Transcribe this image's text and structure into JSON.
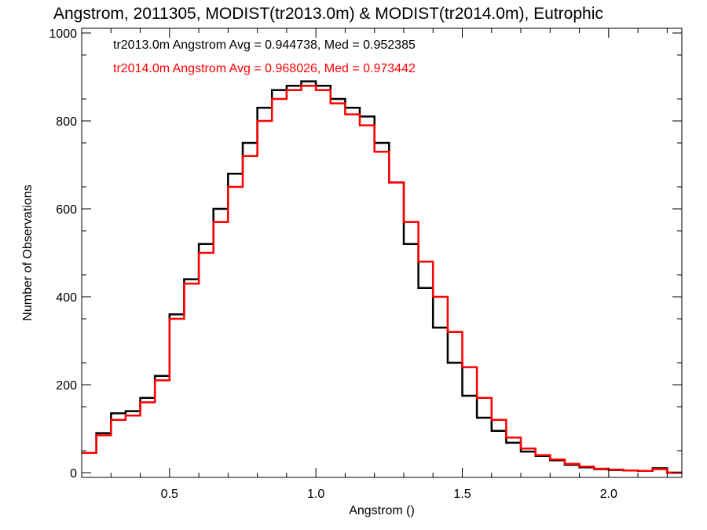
{
  "chart_data": {
    "type": "line",
    "title": "Angstrom, 2011305, MODIST(tr2013.0m) & MODIST(tr2014.0m), Eutrophic",
    "xlabel": "Angstrom ()",
    "ylabel": "Number of Observations",
    "xlim": [
      0.2,
      2.25
    ],
    "ylim": [
      0,
      1000
    ],
    "xticks": [
      0.5,
      1.0,
      1.5,
      2.0
    ],
    "xtick_labels": [
      "0.5",
      "1.0",
      "1.5",
      "2.0"
    ],
    "yticks": [
      0,
      200,
      400,
      600,
      800,
      1000
    ],
    "ytick_labels": [
      "0",
      "200",
      "400",
      "600",
      "800",
      "1000"
    ],
    "grid": false,
    "legend_position": "top-left",
    "annotations": [
      "tr2013.0m Angstrom Avg = 0.944738, Med = 0.952385",
      "tr2014.0m Angstrom Avg = 0.968026, Med = 0.973442"
    ],
    "colors": {
      "series1": "#000000",
      "series2": "#ff0000"
    },
    "series": [
      {
        "x": [
          0.2,
          0.25,
          0.3,
          0.35,
          0.4,
          0.45,
          0.5,
          0.55,
          0.6,
          0.65,
          0.7,
          0.75,
          0.8,
          0.85,
          0.9,
          0.95,
          1.0,
          1.05,
          1.1,
          1.15,
          1.2,
          1.25,
          1.3,
          1.35,
          1.4,
          1.45,
          1.5,
          1.55,
          1.6,
          1.65,
          1.7,
          1.75,
          1.8,
          1.85,
          1.9,
          1.95,
          2.0,
          2.05,
          2.1,
          2.15,
          2.2
        ],
        "values": [
          45,
          90,
          135,
          140,
          170,
          220,
          360,
          440,
          520,
          600,
          680,
          750,
          830,
          870,
          880,
          890,
          880,
          850,
          830,
          810,
          750,
          660,
          520,
          420,
          330,
          250,
          175,
          125,
          95,
          68,
          48,
          38,
          28,
          18,
          12,
          8,
          6,
          5,
          4,
          10,
          0
        ]
      },
      {
        "x": [
          0.2,
          0.25,
          0.3,
          0.35,
          0.4,
          0.45,
          0.5,
          0.55,
          0.6,
          0.65,
          0.7,
          0.75,
          0.8,
          0.85,
          0.9,
          0.95,
          1.0,
          1.05,
          1.1,
          1.15,
          1.2,
          1.25,
          1.3,
          1.35,
          1.4,
          1.45,
          1.5,
          1.55,
          1.6,
          1.65,
          1.7,
          1.75,
          1.8,
          1.85,
          1.9,
          1.95,
          2.0,
          2.05,
          2.1,
          2.15,
          2.2
        ],
        "values": [
          45,
          85,
          120,
          130,
          160,
          210,
          350,
          430,
          500,
          570,
          650,
          720,
          800,
          850,
          870,
          880,
          870,
          840,
          815,
          790,
          730,
          660,
          570,
          480,
          400,
          320,
          240,
          170,
          120,
          80,
          55,
          40,
          30,
          20,
          14,
          9,
          7,
          5,
          4,
          8,
          0
        ]
      }
    ]
  }
}
